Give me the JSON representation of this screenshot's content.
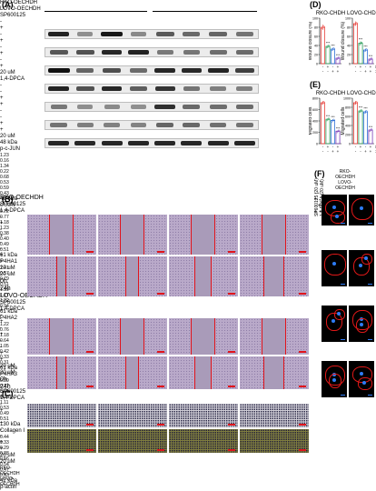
{
  "panelA": {
    "label": "(A)",
    "groups": [
      "RKO-OECHDH",
      "LOVO-OECHDH"
    ],
    "treat_rows": [
      {
        "name": "SP600125",
        "signs": [
          "-",
          "+",
          "-",
          "+",
          "-",
          "+",
          "-",
          "+"
        ],
        "dose": "20 uM"
      },
      {
        "name": "1,4-DPCA",
        "signs": [
          "-",
          "-",
          "+",
          "+",
          "-",
          "-",
          "+",
          "+"
        ],
        "dose": "20 uM"
      }
    ],
    "blots": [
      {
        "kda": "48 kDa",
        "protein": "p-c-JUN",
        "ratios": [
          "1.23",
          "0.16",
          "1.34",
          "0.22",
          "0.68",
          "0.53",
          "0.59",
          "0.43"
        ]
      },
      {
        "kda": "48 kDa",
        "protein": "c-JUN",
        "ratios": [
          "0.72",
          "0.77",
          "1.18",
          "1.23",
          "0.38",
          "0.40",
          "0.49",
          "0.51"
        ]
      },
      {
        "kda": "61 kDa",
        "protein": "P4HA1",
        "ratios": [
          "1.41",
          "0.57",
          "0.79",
          "0.51",
          "1.19",
          "1.17",
          "1.22",
          "0.94"
        ]
      },
      {
        "kda": "61 kDa",
        "protein": "P4HA2",
        "ratios": [
          "1.22",
          "0.76",
          "1.18",
          "0.64",
          "1.05",
          "0.42",
          "0.33",
          "0.31"
        ]
      },
      {
        "kda": "61 kDa",
        "protein": "P4HA3",
        "ratios": [
          "0.39",
          "0.17",
          "0.21",
          "0.16",
          "1.11",
          "0.53",
          "0.49",
          "0.51"
        ]
      },
      {
        "kda": "130 kDa",
        "protein": "Collagen I",
        "ratios": [
          "0.44",
          "0.33",
          "0.29",
          "0.28",
          "0.56",
          "0.54",
          "0.47",
          "0.43"
        ]
      },
      {
        "kda": "42 kDa",
        "protein": "β-actin",
        "ratios": []
      }
    ]
  },
  "panelB": {
    "label": "(B)",
    "rko_title": "RKO-OECHDH",
    "lovo_title": "LOVO-OECHDH",
    "sp_label": "SP600125",
    "dpca_label": "1,4-DPCA",
    "sp_signs": [
      "-",
      "+",
      "-",
      "+"
    ],
    "dpca_signs": [
      "-",
      "-",
      "+",
      "+"
    ],
    "dose": "20 uM",
    "time_labels": [
      "0h",
      "24h"
    ]
  },
  "panelC": {
    "label": "(C)",
    "sp_label": "SP600125",
    "dpca_label": "1,4-DPCA",
    "sp_signs": [
      "-",
      "+",
      "-",
      "+"
    ],
    "dpca_signs": [
      "-",
      "-",
      "+",
      "+"
    ],
    "dose": "20 uM",
    "row_labels": [
      "RKO-\nOECHDH",
      "LOVO-\nOECHDH"
    ]
  },
  "panelD": {
    "label": "(D)"
  },
  "panelE": {
    "label": "(E)"
  },
  "panelF": {
    "label": "(F)",
    "col_labels": [
      "RKO-\nOECHDH",
      "LOVO-\nOECHDH"
    ],
    "row_signs": [
      "- -",
      "+ -",
      "- +",
      "+ +"
    ],
    "side_label": "SP600125 (20 uM)\n1,4-DPCA (20 uM)"
  },
  "bar_shared": {
    "treat_rows": [
      {
        "name": "SP600125",
        "signs": [
          "-",
          "+",
          "-",
          "+"
        ]
      },
      {
        "name": "1,4-DPCA",
        "signs": [
          "-",
          "-",
          "+",
          "+"
        ]
      }
    ],
    "colors": [
      "#e8413c",
      "#2a9d5a",
      "#2f6fd6",
      "#7b3fb8"
    ]
  },
  "chart_data": [
    {
      "type": "bar",
      "panel": "D",
      "title": "RKO-CHDH",
      "ylabel": "Wound closure (%)",
      "ylim": [
        0,
        100
      ],
      "yticks": [
        "0",
        "20",
        "40",
        "60",
        "80",
        "100"
      ],
      "values": [
        80,
        38,
        32,
        12
      ],
      "errors": [
        6,
        3,
        3,
        2
      ],
      "sig": [
        "",
        "***",
        "***",
        "***"
      ]
    },
    {
      "type": "bar",
      "panel": "D",
      "title": "LOVO-CHDH",
      "ylabel": "Wound closure (%)",
      "ylim": [
        0,
        100
      ],
      "yticks": [
        "0",
        "20",
        "40",
        "60",
        "80",
        "100"
      ],
      "values": [
        88,
        45,
        30,
        10
      ],
      "errors": [
        5,
        4,
        3,
        2
      ],
      "sig": [
        "",
        "***",
        "***",
        "***"
      ]
    },
    {
      "type": "bar",
      "panel": "E",
      "title": "RKO-CHDH",
      "ylabel": "Migrated cells",
      "ylim": [
        0,
        800
      ],
      "yticks": [
        "0",
        "200",
        "400",
        "600",
        "800"
      ],
      "values": [
        720,
        430,
        410,
        220
      ],
      "errors": [
        30,
        20,
        20,
        15
      ],
      "sig": [
        "",
        "***",
        "***",
        "***"
      ]
    },
    {
      "type": "bar",
      "panel": "E",
      "title": "LOVO-CHDH",
      "ylabel": "Migrated cells",
      "ylim": [
        0,
        1000
      ],
      "yticks": [
        "0",
        "200",
        "400",
        "600",
        "800",
        "1000"
      ],
      "values": [
        900,
        720,
        700,
        300
      ],
      "errors": [
        40,
        30,
        30,
        20
      ],
      "sig": [
        "",
        "***",
        "***",
        "***"
      ]
    }
  ]
}
